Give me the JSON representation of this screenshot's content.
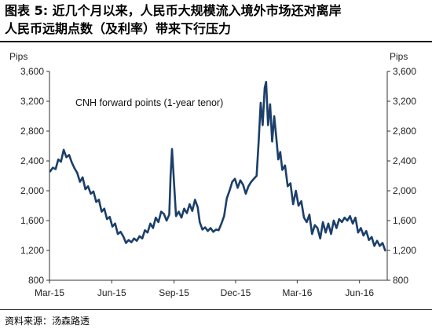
{
  "title": {
    "line1": "图表 5: 近几个月以来，人民币大规模流入境外市场还对离岸",
    "line2": "人民币远期点数（及利率）带来下行压力"
  },
  "source": "资料来源：汤森路透",
  "colors": {
    "line": "#1b3f69",
    "axis": "#333333"
  },
  "chart_data": {
    "type": "line",
    "annotation": "CNH forward points (1-year tenor)",
    "y_unit_left": "Pips",
    "y_unit_right": "Pips",
    "ylim": [
      800,
      3600
    ],
    "y_ticks": [
      800,
      1200,
      1600,
      2000,
      2400,
      2800,
      3200,
      3600
    ],
    "y_tick_labels": [
      "800",
      "1,200",
      "1,600",
      "2,000",
      "2,400",
      "2,800",
      "3,200",
      "3,600"
    ],
    "x_tick_labels": [
      "Mar-15",
      "Jun-15",
      "Sep-15",
      "Dec-15",
      "Mar-16",
      "Jun-16"
    ],
    "x_ticks": [
      "2015-03-01",
      "2015-06-01",
      "2015-09-01",
      "2015-12-01",
      "2016-03-01",
      "2016-06-01"
    ],
    "xlim": [
      "2015-03-01",
      "2016-07-12"
    ],
    "grid": false,
    "legend": "none",
    "series": [
      {
        "values": [
          [
            "2015-03-02",
            2260
          ],
          [
            "2015-03-06",
            2310
          ],
          [
            "2015-03-10",
            2290
          ],
          [
            "2015-03-14",
            2420
          ],
          [
            "2015-03-18",
            2390
          ],
          [
            "2015-03-22",
            2550
          ],
          [
            "2015-03-26",
            2450
          ],
          [
            "2015-03-30",
            2480
          ],
          [
            "2015-04-03",
            2380
          ],
          [
            "2015-04-07",
            2300
          ],
          [
            "2015-04-11",
            2240
          ],
          [
            "2015-04-15",
            2120
          ],
          [
            "2015-04-19",
            2180
          ],
          [
            "2015-04-23",
            2020
          ],
          [
            "2015-04-27",
            2060
          ],
          [
            "2015-05-01",
            1960
          ],
          [
            "2015-05-05",
            1990
          ],
          [
            "2015-05-09",
            1850
          ],
          [
            "2015-05-13",
            1880
          ],
          [
            "2015-05-17",
            1720
          ],
          [
            "2015-05-21",
            1760
          ],
          [
            "2015-05-25",
            1620
          ],
          [
            "2015-05-29",
            1650
          ],
          [
            "2015-06-02",
            1520
          ],
          [
            "2015-06-06",
            1560
          ],
          [
            "2015-06-10",
            1420
          ],
          [
            "2015-06-14",
            1450
          ],
          [
            "2015-06-18",
            1390
          ],
          [
            "2015-06-22",
            1300
          ],
          [
            "2015-06-26",
            1340
          ],
          [
            "2015-06-30",
            1310
          ],
          [
            "2015-07-04",
            1360
          ],
          [
            "2015-07-08",
            1330
          ],
          [
            "2015-07-12",
            1390
          ],
          [
            "2015-07-16",
            1360
          ],
          [
            "2015-07-20",
            1470
          ],
          [
            "2015-07-24",
            1440
          ],
          [
            "2015-07-28",
            1560
          ],
          [
            "2015-08-01",
            1500
          ],
          [
            "2015-08-05",
            1640
          ],
          [
            "2015-08-09",
            1580
          ],
          [
            "2015-08-13",
            1720
          ],
          [
            "2015-08-17",
            1690
          ],
          [
            "2015-08-21",
            1600
          ],
          [
            "2015-08-25",
            1680
          ],
          [
            "2015-08-27",
            2200
          ],
          [
            "2015-08-29",
            2560
          ],
          [
            "2015-09-01",
            2100
          ],
          [
            "2015-09-04",
            1660
          ],
          [
            "2015-09-08",
            1720
          ],
          [
            "2015-09-12",
            1640
          ],
          [
            "2015-09-16",
            1760
          ],
          [
            "2015-09-20",
            1700
          ],
          [
            "2015-09-24",
            1820
          ],
          [
            "2015-09-28",
            1730
          ],
          [
            "2015-10-02",
            1880
          ],
          [
            "2015-10-06",
            1780
          ],
          [
            "2015-10-09",
            1580
          ],
          [
            "2015-10-13",
            1480
          ],
          [
            "2015-10-17",
            1510
          ],
          [
            "2015-10-21",
            1460
          ],
          [
            "2015-10-25",
            1500
          ],
          [
            "2015-10-29",
            1450
          ],
          [
            "2015-11-02",
            1480
          ],
          [
            "2015-11-06",
            1470
          ],
          [
            "2015-11-10",
            1560
          ],
          [
            "2015-11-14",
            1660
          ],
          [
            "2015-11-18",
            1900
          ],
          [
            "2015-11-22",
            2000
          ],
          [
            "2015-11-26",
            2120
          ],
          [
            "2015-11-30",
            2160
          ],
          [
            "2015-12-04",
            2040
          ],
          [
            "2015-12-08",
            2140
          ],
          [
            "2015-12-12",
            2080
          ],
          [
            "2015-12-16",
            1960
          ],
          [
            "2015-12-20",
            2060
          ],
          [
            "2015-12-24",
            2120
          ],
          [
            "2015-12-28",
            2160
          ],
          [
            "2016-01-01",
            2200
          ],
          [
            "2016-01-04",
            2660
          ],
          [
            "2016-01-07",
            3180
          ],
          [
            "2016-01-10",
            2880
          ],
          [
            "2016-01-13",
            3380
          ],
          [
            "2016-01-15",
            3460
          ],
          [
            "2016-01-18",
            2880
          ],
          [
            "2016-01-21",
            3160
          ],
          [
            "2016-01-24",
            2660
          ],
          [
            "2016-01-27",
            3000
          ],
          [
            "2016-01-30",
            2720
          ],
          [
            "2016-02-02",
            2420
          ],
          [
            "2016-02-05",
            2520
          ],
          [
            "2016-02-08",
            2280
          ],
          [
            "2016-02-12",
            2340
          ],
          [
            "2016-02-16",
            2060
          ],
          [
            "2016-02-20",
            2100
          ],
          [
            "2016-02-24",
            1820
          ],
          [
            "2016-02-28",
            2000
          ],
          [
            "2016-03-03",
            1800
          ],
          [
            "2016-03-07",
            1860
          ],
          [
            "2016-03-11",
            1640
          ],
          [
            "2016-03-15",
            1580
          ],
          [
            "2016-03-19",
            1680
          ],
          [
            "2016-03-23",
            1420
          ],
          [
            "2016-03-27",
            1540
          ],
          [
            "2016-03-31",
            1500
          ],
          [
            "2016-04-04",
            1360
          ],
          [
            "2016-04-08",
            1580
          ],
          [
            "2016-04-12",
            1440
          ],
          [
            "2016-04-16",
            1560
          ],
          [
            "2016-04-20",
            1420
          ],
          [
            "2016-04-24",
            1600
          ],
          [
            "2016-04-28",
            1500
          ],
          [
            "2016-05-02",
            1620
          ],
          [
            "2016-05-06",
            1580
          ],
          [
            "2016-05-10",
            1640
          ],
          [
            "2016-05-14",
            1600
          ],
          [
            "2016-05-18",
            1660
          ],
          [
            "2016-05-22",
            1560
          ],
          [
            "2016-05-26",
            1640
          ],
          [
            "2016-05-30",
            1440
          ],
          [
            "2016-06-03",
            1500
          ],
          [
            "2016-06-07",
            1400
          ],
          [
            "2016-06-11",
            1460
          ],
          [
            "2016-06-15",
            1340
          ],
          [
            "2016-06-19",
            1380
          ],
          [
            "2016-06-23",
            1260
          ],
          [
            "2016-06-27",
            1330
          ],
          [
            "2016-07-01",
            1260
          ],
          [
            "2016-07-05",
            1300
          ],
          [
            "2016-07-09",
            1200
          ]
        ]
      }
    ]
  }
}
